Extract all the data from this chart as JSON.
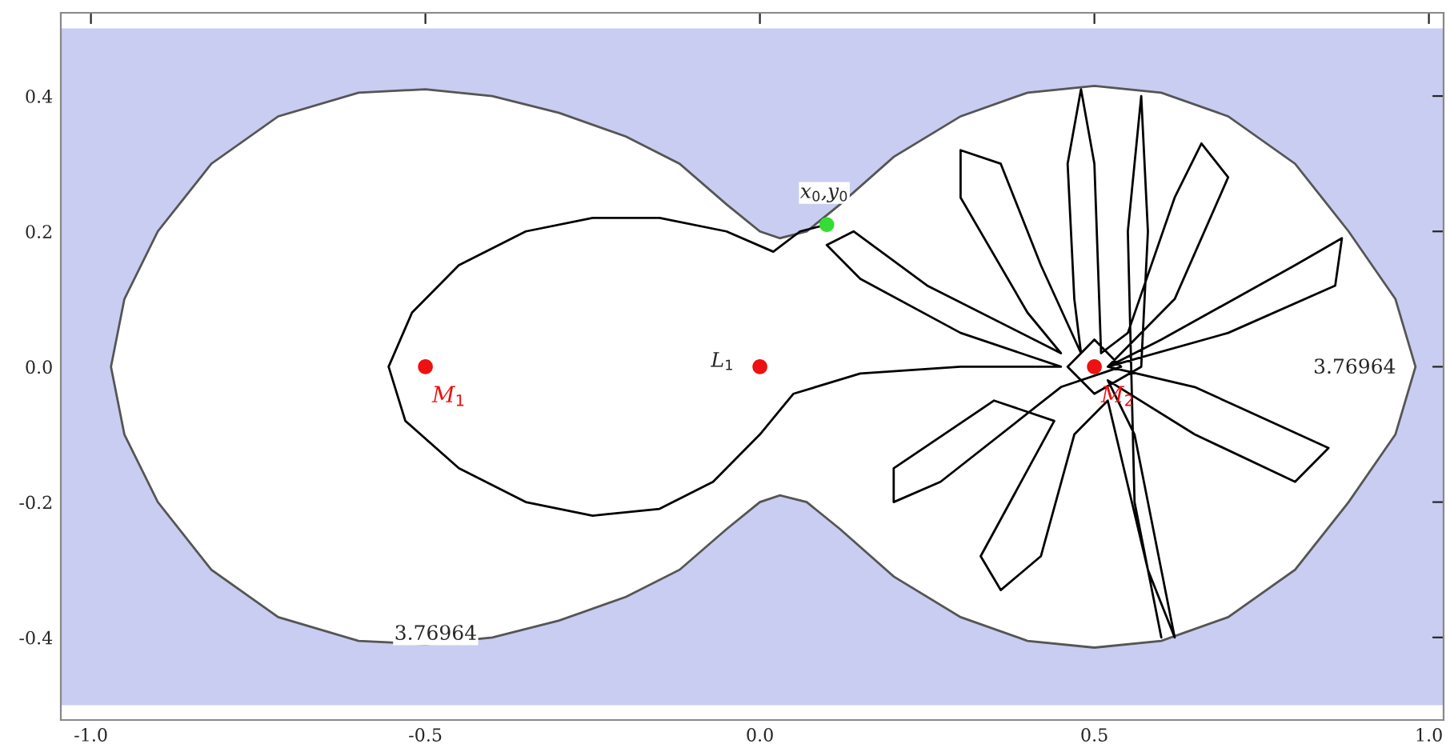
{
  "chart_data": {
    "type": "line",
    "xlim": [
      -1.045,
      1.022
    ],
    "ylim": [
      -0.522,
      0.523
    ],
    "xticks": [
      {
        "value": -1,
        "label": "-1.0"
      },
      -0.5,
      {
        "value": 0,
        "label": "0.0"
      },
      0.5,
      {
        "value": 1,
        "label": "1.0"
      }
    ],
    "yticks": [
      -0.4,
      -0.2,
      {
        "value": 0,
        "label": "0.0"
      },
      0.2,
      0.4
    ],
    "grid": false,
    "legend": false,
    "bands": [
      {
        "axis": "y",
        "from": -0.5,
        "to": 0.5,
        "color": "#c9cdf1"
      }
    ],
    "series": [
      {
        "type": "area",
        "color": "#ffffff",
        "x": [
          -0.97,
          -0.95,
          -0.9,
          -0.82,
          -0.72,
          -0.6,
          -0.5,
          -0.4,
          -0.3,
          -0.2,
          -0.12,
          -0.05,
          0.0,
          0.03,
          0.07,
          0.12,
          0.2,
          0.3,
          0.4,
          0.5,
          0.6,
          0.7,
          0.8,
          0.88,
          0.95,
          0.98,
          0.95,
          0.88,
          0.8,
          0.7,
          0.6,
          0.5,
          0.4,
          0.3,
          0.2,
          0.12,
          0.07,
          0.03,
          0.0,
          -0.05,
          -0.12,
          -0.2,
          -0.3,
          -0.4,
          -0.5,
          -0.6,
          -0.72,
          -0.82,
          -0.9,
          -0.95,
          -0.97
        ],
        "values": [
          0.0,
          0.1,
          0.2,
          0.3,
          0.37,
          0.405,
          0.41,
          0.4,
          0.375,
          0.34,
          0.3,
          0.24,
          0.2,
          0.19,
          0.2,
          0.24,
          0.31,
          0.37,
          0.405,
          0.415,
          0.405,
          0.37,
          0.3,
          0.2,
          0.1,
          0.0,
          -0.1,
          -0.2,
          -0.3,
          -0.37,
          -0.405,
          -0.415,
          -0.405,
          -0.37,
          -0.31,
          -0.24,
          -0.2,
          -0.19,
          -0.2,
          -0.24,
          -0.3,
          -0.34,
          -0.375,
          -0.4,
          -0.41,
          -0.405,
          -0.37,
          -0.3,
          -0.2,
          -0.1,
          0.0
        ]
      },
      {
        "color": "#000000",
        "x": [
          0.1,
          0.06,
          0.02,
          -0.05,
          -0.15,
          -0.25,
          -0.35,
          -0.45,
          -0.52,
          -0.555,
          -0.53,
          -0.45,
          -0.35,
          -0.25,
          -0.15,
          -0.07,
          0.0,
          0.05,
          0.15,
          0.3,
          0.45,
          0.3,
          0.15,
          0.1,
          0.14,
          0.25,
          0.45,
          0.4,
          0.3,
          0.3,
          0.36,
          0.42,
          0.48,
          0.47,
          0.46,
          0.48,
          0.5,
          0.51,
          0.55,
          0.62,
          0.66,
          0.7,
          0.62,
          0.52,
          0.6,
          0.8,
          0.87,
          0.86,
          0.7,
          0.52,
          0.65,
          0.85,
          0.8,
          0.65,
          0.52,
          0.56,
          0.6,
          0.62,
          0.58,
          0.52,
          0.47,
          0.42,
          0.36,
          0.33,
          0.44,
          0.35,
          0.2,
          0.2,
          0.27,
          0.45,
          0.54,
          0.5,
          0.46,
          0.5,
          0.57,
          0.58,
          0.57,
          0.55,
          0.56,
          0.6
        ],
        "values": [
          0.21,
          0.2,
          0.17,
          0.2,
          0.22,
          0.22,
          0.2,
          0.15,
          0.08,
          0.0,
          -0.08,
          -0.15,
          -0.2,
          -0.22,
          -0.21,
          -0.17,
          -0.1,
          -0.04,
          -0.01,
          0.0,
          0.0,
          0.05,
          0.13,
          0.18,
          0.2,
          0.12,
          0.02,
          0.08,
          0.25,
          0.32,
          0.3,
          0.15,
          0.02,
          0.1,
          0.3,
          0.41,
          0.3,
          0.02,
          0.05,
          0.25,
          0.33,
          0.28,
          0.1,
          0.0,
          0.04,
          0.15,
          0.19,
          0.12,
          0.05,
          0.0,
          -0.03,
          -0.12,
          -0.17,
          -0.1,
          -0.02,
          -0.1,
          -0.3,
          -0.4,
          -0.3,
          -0.05,
          -0.1,
          -0.28,
          -0.33,
          -0.28,
          -0.08,
          -0.05,
          -0.15,
          -0.2,
          -0.17,
          -0.03,
          0.0,
          0.04,
          0.0,
          -0.04,
          0.0,
          0.2,
          0.4,
          0.2,
          -0.2,
          -0.4
        ]
      },
      {
        "type": "scatter",
        "name": "M$_{1}$",
        "color": "#ee1111",
        "x": [
          -0.5
        ],
        "values": [
          0.0
        ]
      },
      {
        "type": "scatter",
        "name": "M$_{2}$",
        "color": "#ee1111",
        "x": [
          0.5
        ],
        "values": [
          0.0
        ]
      },
      {
        "type": "scatter",
        "color": "#ee1111",
        "x": [
          0.0
        ],
        "values": [
          0.0
        ]
      },
      {
        "type": "scatter",
        "color": "#33dd33",
        "x": [
          0.1
        ],
        "values": [
          0.21
        ]
      }
    ],
    "annotations": [
      {
        "text": "L$_{1}$",
        "x": 0.0,
        "y": 0.0
      },
      {
        "text": "x$_{0}$,y$_{0}$",
        "x": 0.1,
        "y": 0.21
      },
      {
        "text": "3.76964",
        "x": -0.5,
        "y": -0.41
      },
      {
        "text": "3.76964",
        "x": 0.98,
        "y": 0.0
      }
    ]
  }
}
